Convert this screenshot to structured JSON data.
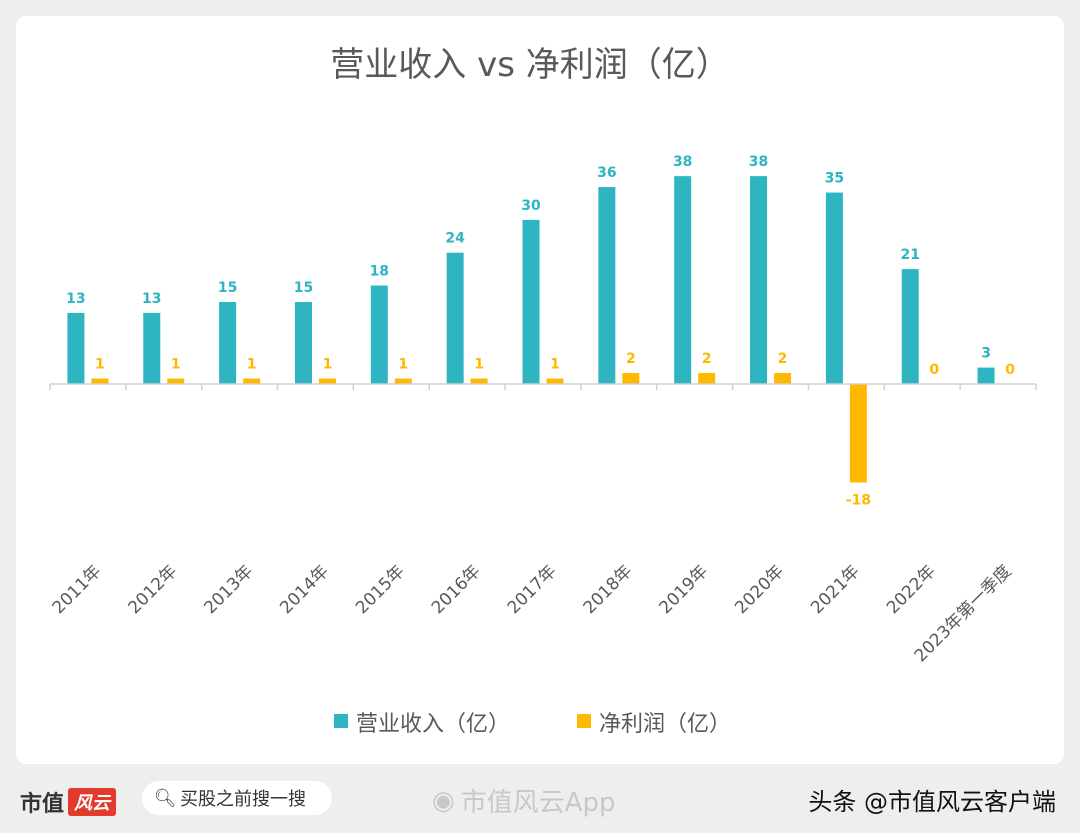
{
  "chart_data": {
    "type": "bar",
    "title": "营业收入 vs 净利润（亿）",
    "categories": [
      "2011年",
      "2012年",
      "2013年",
      "2014年",
      "2015年",
      "2016年",
      "2017年",
      "2018年",
      "2019年",
      "2020年",
      "2021年",
      "2022年",
      "2023年第一季度"
    ],
    "series": [
      {
        "name": "营业收入（亿）",
        "color": "#2eb5c1",
        "values": [
          13,
          13,
          15,
          15,
          18,
          24,
          30,
          36,
          38,
          38,
          35,
          21,
          3
        ],
        "labels": [
          "13",
          "13",
          "15",
          "15",
          "18",
          "24",
          "30",
          "36",
          "38",
          "38",
          "35",
          "21",
          "3"
        ]
      },
      {
        "name": "净利润（亿）",
        "color": "#ffb800",
        "values": [
          1,
          1,
          1,
          1,
          1,
          1,
          1,
          2,
          2,
          2,
          -18,
          0,
          0
        ],
        "labels": [
          "1",
          "1",
          "1",
          "1",
          "1",
          "1",
          "1",
          "2",
          "2",
          "2",
          "-18",
          "0",
          "0"
        ]
      }
    ],
    "ylim": [
      -20,
      40
    ],
    "grid": false,
    "legend": "bottom"
  },
  "footer": {
    "brand": "市值",
    "brand_mark": "风云",
    "search_icon": "search-icon",
    "search_text": "买股之前搜一搜",
    "app_watermark": "市值风云App",
    "source": "头条 @市值风云客户端"
  }
}
